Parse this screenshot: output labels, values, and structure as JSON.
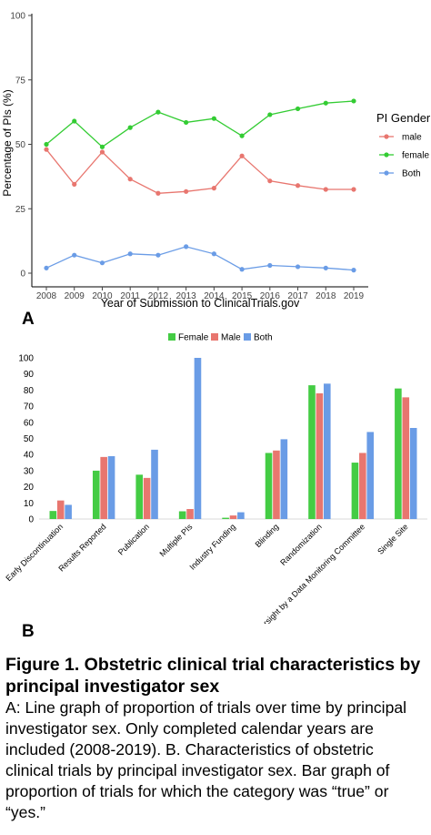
{
  "chart_data": [
    {
      "type": "line",
      "panel_label": "A",
      "xlabel": "Year of Submission to ClinicalTrials.gov",
      "ylabel": "Percentage of PIs (%)",
      "x": [
        2008,
        2009,
        2010,
        2011,
        2012,
        2013,
        2014,
        2015,
        2016,
        2017,
        2018,
        2019
      ],
      "xticks": [
        "2008",
        "2009",
        "2010",
        "2011",
        "2012",
        "2013",
        "2014",
        "2015",
        "2016",
        "2017",
        "2018",
        "2019"
      ],
      "yticks": [
        0,
        25,
        50,
        75,
        100
      ],
      "ylim": [
        0,
        100
      ],
      "legend_title": "PI Gender",
      "legend_position": "right",
      "grid": false,
      "series": [
        {
          "name": "male",
          "color": "#E8766F",
          "values": [
            48,
            34.5,
            47,
            36.5,
            31,
            31.7,
            33,
            45.5,
            35.8,
            34,
            32.5,
            32.5
          ]
        },
        {
          "name": "female",
          "color": "#33CC33",
          "values": [
            50,
            59,
            49,
            56.5,
            62.5,
            58.5,
            60,
            53.3,
            61.5,
            63.8,
            66,
            66.8
          ]
        },
        {
          "name": "Both",
          "color": "#6A9CE6",
          "values": [
            2,
            7,
            4,
            7.5,
            7,
            10.3,
            7.5,
            1.5,
            3,
            2.5,
            2,
            1.2
          ]
        }
      ]
    },
    {
      "type": "bar",
      "panel_label": "B",
      "categories": [
        "Early Discontinuation",
        "Results Reported",
        "Publication",
        "Multiple PIs",
        "Industry Funding",
        "Blinding",
        "Randomization",
        "Oversight by a Data Monitoring Committee",
        "Single Site"
      ],
      "yticks": [
        0,
        10,
        20,
        30,
        40,
        50,
        60,
        70,
        80,
        90,
        100
      ],
      "ylim": [
        0,
        100
      ],
      "legend_position": "top",
      "grid": false,
      "series": [
        {
          "name": "Female",
          "color": "#44CC44",
          "values": [
            5,
            30,
            27.5,
            4.8,
            0.8,
            41,
            83,
            35,
            81
          ]
        },
        {
          "name": "Male",
          "color": "#E8766F",
          "values": [
            11.5,
            38.5,
            25.5,
            6.2,
            2.2,
            42.5,
            78,
            41,
            75.5
          ]
        },
        {
          "name": "Both",
          "color": "#6A9CE6",
          "values": [
            8.8,
            39,
            43,
            100,
            4.2,
            49.5,
            84,
            54,
            56.5
          ]
        }
      ]
    }
  ],
  "caption": {
    "title": "Figure 1. Obstetric clinical trial characteristics by principal investigator sex",
    "body": "A: Line graph of proportion of trials over time by principal investigator sex. Only completed calendar years are included (2008-2019). B. Characteristics of obstetric clinical trials by principal investigator sex. Bar graph of proportion of trials for which the category was “true” or “yes.”"
  }
}
